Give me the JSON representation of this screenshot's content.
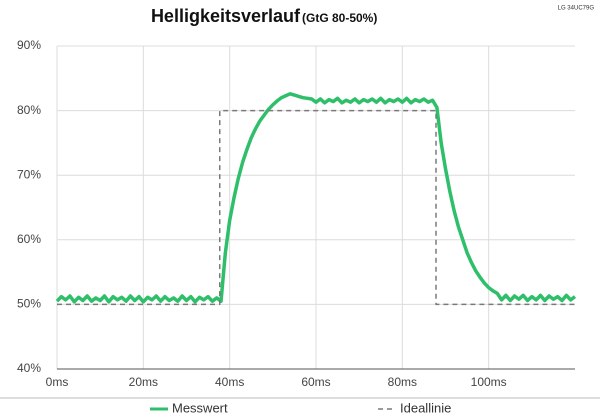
{
  "chart_data": {
    "type": "line",
    "title": "Helligkeitsverlauf",
    "subtitle": "(GtG 80-50%)",
    "annotation": "LG 34UC79G",
    "xlim": [
      0,
      120
    ],
    "ylim": [
      40,
      90
    ],
    "xticks": [
      {
        "value": 0,
        "label": "0ms"
      },
      {
        "value": 20,
        "label": "20ms"
      },
      {
        "value": 40,
        "label": "40ms"
      },
      {
        "value": 60,
        "label": "60ms"
      },
      {
        "value": 80,
        "label": "80ms"
      },
      {
        "value": 100,
        "label": "100ms"
      }
    ],
    "yticks": [
      {
        "value": 40,
        "label": "40%"
      },
      {
        "value": 50,
        "label": "50%"
      },
      {
        "value": 60,
        "label": "60%"
      },
      {
        "value": 70,
        "label": "70%"
      },
      {
        "value": 80,
        "label": "80%"
      },
      {
        "value": 90,
        "label": "90%"
      }
    ],
    "grid": true,
    "legend": "bottom",
    "series": [
      {
        "name": "Messwert",
        "color": "#2fbf6a",
        "dashed": false,
        "x": [
          0,
          1,
          2,
          3,
          4,
          5,
          6,
          7,
          8,
          9,
          10,
          11,
          12,
          13,
          14,
          15,
          16,
          17,
          18,
          19,
          20,
          21,
          22,
          23,
          24,
          25,
          26,
          27,
          28,
          29,
          30,
          31,
          32,
          33,
          34,
          35,
          36,
          37,
          38,
          39,
          40,
          41,
          42,
          43,
          44,
          45,
          46,
          47,
          48,
          49,
          50,
          51,
          52,
          53,
          54,
          55,
          56,
          57,
          58,
          59,
          60,
          61,
          62,
          63,
          64,
          65,
          66,
          67,
          68,
          69,
          70,
          71,
          72,
          73,
          74,
          75,
          76,
          77,
          78,
          79,
          80,
          81,
          82,
          83,
          84,
          85,
          86,
          87,
          88,
          89,
          90,
          91,
          92,
          93,
          94,
          95,
          96,
          97,
          98,
          99,
          100,
          101,
          102,
          103,
          104,
          105,
          106,
          107,
          108,
          109,
          110,
          111,
          112,
          113,
          114,
          115,
          116,
          117,
          118,
          119,
          120
        ],
        "values": [
          50.5,
          51.2,
          50.7,
          51.3,
          50.4,
          51.1,
          50.6,
          51.3,
          50.5,
          51.0,
          50.6,
          51.3,
          50.4,
          51.2,
          50.7,
          51.1,
          50.5,
          51.3,
          50.6,
          51.2,
          50.4,
          51.1,
          50.7,
          51.3,
          50.5,
          51.2,
          50.6,
          51.0,
          50.5,
          51.3,
          50.6,
          51.2,
          50.4,
          51.1,
          50.7,
          51.2,
          50.5,
          51.0,
          50.5,
          58,
          63,
          66.5,
          69.5,
          72,
          74,
          75.8,
          77.2,
          78.4,
          79.3,
          80.2,
          80.9,
          81.5,
          82,
          82.3,
          82.6,
          82.4,
          82.2,
          82,
          81.9,
          81.8,
          81.3,
          81.8,
          81.2,
          81.7,
          81.4,
          81.9,
          81.2,
          81.6,
          81.3,
          81.8,
          81.2,
          81.7,
          81.4,
          81.8,
          81.3,
          81.9,
          81.2,
          81.7,
          81.4,
          81.8,
          81.3,
          81.9,
          81.2,
          81.7,
          81.4,
          81.8,
          81.3,
          81.6,
          80.5,
          75,
          71,
          67.5,
          64.5,
          62,
          60,
          58,
          56.5,
          55.2,
          54.2,
          53.3,
          52.6,
          52.1,
          51.7,
          50.7,
          51.4,
          50.6,
          51.3,
          50.8,
          51.4,
          50.6,
          51.2,
          50.7,
          51.4,
          50.6,
          51.3,
          50.8,
          51.2,
          50.6,
          51.4,
          50.7,
          51.2
        ]
      },
      {
        "name": "Ideallinie",
        "color": "#7a7a7a",
        "dashed": true,
        "x": [
          0,
          37.7,
          37.7,
          87.8,
          87.8,
          120
        ],
        "values": [
          50,
          50,
          80,
          80,
          50,
          50
        ]
      }
    ]
  }
}
